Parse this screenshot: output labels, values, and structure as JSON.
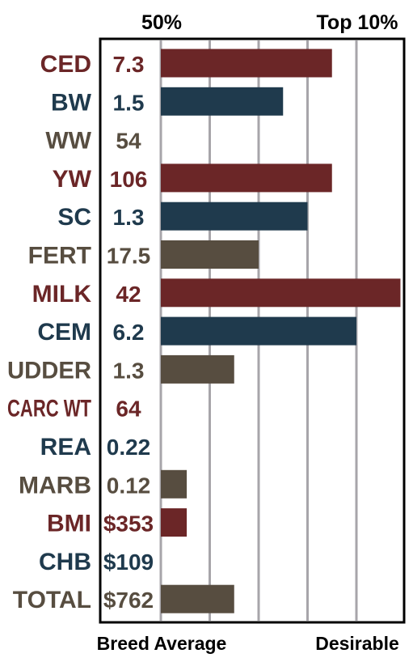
{
  "chart_data": {
    "type": "bar",
    "orientation": "horizontal",
    "top_labels": [
      "50%",
      "Top 10%"
    ],
    "bottom_labels": [
      "Breed Average",
      "Desirable"
    ],
    "grid": true,
    "colors": {
      "maroon": "#6b2627",
      "navy": "#1f3a4d",
      "brown": "#574d40",
      "gridline": "#a7a5aa",
      "frame": "#000000"
    },
    "rows": [
      {
        "trait": "CED",
        "value_label": "7.3",
        "bar": 3.5,
        "color": "maroon"
      },
      {
        "trait": "BW",
        "value_label": "1.5",
        "bar": 2.5,
        "color": "navy"
      },
      {
        "trait": "WW",
        "value_label": "54",
        "bar": 0,
        "color": "brown"
      },
      {
        "trait": "YW",
        "value_label": "106",
        "bar": 3.5,
        "color": "maroon"
      },
      {
        "trait": "SC",
        "value_label": "1.3",
        "bar": 3.0,
        "color": "navy"
      },
      {
        "trait": "FERT",
        "value_label": "17.5",
        "bar": 2.0,
        "color": "brown"
      },
      {
        "trait": "MILK",
        "value_label": "42",
        "bar": 4.9,
        "color": "maroon"
      },
      {
        "trait": "CEM",
        "value_label": "6.2",
        "bar": 4.0,
        "color": "navy"
      },
      {
        "trait": "UDDER",
        "value_label": "1.3",
        "bar": 1.5,
        "color": "brown"
      },
      {
        "trait": "CARC WT",
        "value_label": "64",
        "bar": 0,
        "color": "maroon"
      },
      {
        "trait": "REA",
        "value_label": "0.22",
        "bar": 0,
        "color": "navy"
      },
      {
        "trait": "MARB",
        "value_label": "0.12",
        "bar": 0.53,
        "color": "brown"
      },
      {
        "trait": "BMI",
        "value_label": "$353",
        "bar": 0.53,
        "color": "maroon"
      },
      {
        "trait": "CHB",
        "value_label": "$109",
        "bar": 0,
        "color": "navy"
      },
      {
        "trait": "TOTAL",
        "value_label": "$762",
        "bar": 1.5,
        "color": "brown"
      }
    ]
  }
}
